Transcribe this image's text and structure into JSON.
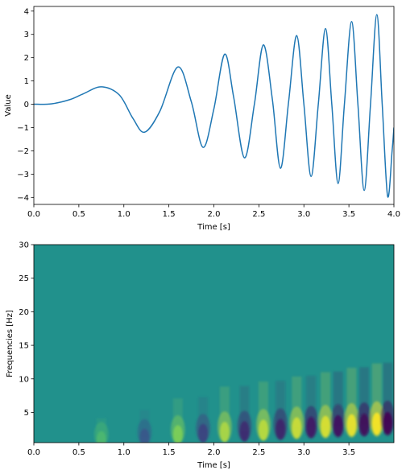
{
  "chart_data": [
    {
      "type": "line",
      "title": "",
      "xlabel": "Time [s]",
      "ylabel": "Value",
      "xlim": [
        0.0,
        4.0
      ],
      "ylim": [
        -4.3,
        4.2
      ],
      "xticks": [
        "0.0",
        "0.5",
        "1.0",
        "1.5",
        "2.0",
        "2.5",
        "3.0",
        "3.5",
        "4.0"
      ],
      "yticks": [
        "4",
        "3",
        "2",
        "1",
        "0",
        "-1",
        "-2",
        "-3",
        "-4"
      ],
      "grid": false,
      "line_color": "#1f77b4",
      "series": [
        {
          "x": [
            0.0,
            0.2,
            0.4,
            0.55,
            0.75,
            0.95,
            1.1,
            1.23,
            1.4,
            1.6,
            1.75,
            1.88,
            2.0,
            2.12,
            2.22,
            2.34,
            2.45,
            2.55,
            2.65,
            2.74,
            2.83,
            2.92,
            3.0,
            3.08,
            3.16,
            3.24,
            3.31,
            3.38,
            3.45,
            3.53,
            3.6,
            3.67,
            3.74,
            3.81,
            3.87,
            3.93,
            3.98,
            4.0
          ],
          "y": [
            0.0,
            0.02,
            0.2,
            0.45,
            0.75,
            0.4,
            -0.6,
            -1.2,
            -0.3,
            1.6,
            0.1,
            -1.85,
            -0.2,
            2.15,
            0.3,
            -2.3,
            0.0,
            2.55,
            0.2,
            -2.75,
            0.1,
            2.95,
            0.0,
            -3.1,
            0.0,
            3.25,
            0.0,
            -3.4,
            0.0,
            3.55,
            0.0,
            -3.7,
            0.0,
            3.85,
            0.0,
            -3.95,
            -2.0,
            -1.0
          ]
        }
      ]
    },
    {
      "type": "heatmap",
      "title": "",
      "xlabel": "Time [s]",
      "ylabel": "Frequencies [Hz]",
      "xlim": [
        0.0,
        4.0
      ],
      "ylim": [
        0.5,
        30
      ],
      "xticks": [
        "0.0",
        "0.5",
        "1.0",
        "1.5",
        "2.0",
        "2.5",
        "3.0",
        "3.5"
      ],
      "yticks": [
        "30",
        "25",
        "20",
        "15",
        "10",
        "5"
      ],
      "colormap": "viridis",
      "background_color": "#21918c",
      "note_values": "",
      "blobs": [
        {
          "t": 0.75,
          "f": 1.0,
          "v": 0.35
        },
        {
          "t": 1.23,
          "f": 1.3,
          "v": -0.45
        },
        {
          "t": 1.6,
          "f": 1.7,
          "v": 0.6
        },
        {
          "t": 1.88,
          "f": 1.9,
          "v": -0.6
        },
        {
          "t": 2.12,
          "f": 2.1,
          "v": 0.75
        },
        {
          "t": 2.34,
          "f": 2.2,
          "v": -0.75
        },
        {
          "t": 2.55,
          "f": 2.4,
          "v": 0.8
        },
        {
          "t": 2.74,
          "f": 2.5,
          "v": -0.8
        },
        {
          "t": 2.92,
          "f": 2.7,
          "v": 0.85
        },
        {
          "t": 3.08,
          "f": 2.8,
          "v": -0.85
        },
        {
          "t": 3.24,
          "f": 2.9,
          "v": 0.9
        },
        {
          "t": 3.38,
          "f": 3.0,
          "v": -0.9
        },
        {
          "t": 3.53,
          "f": 3.1,
          "v": 0.95
        },
        {
          "t": 3.67,
          "f": 3.2,
          "v": -0.95
        },
        {
          "t": 3.81,
          "f": 3.3,
          "v": 1.0
        },
        {
          "t": 3.93,
          "f": 3.4,
          "v": -1.0
        }
      ]
    }
  ]
}
